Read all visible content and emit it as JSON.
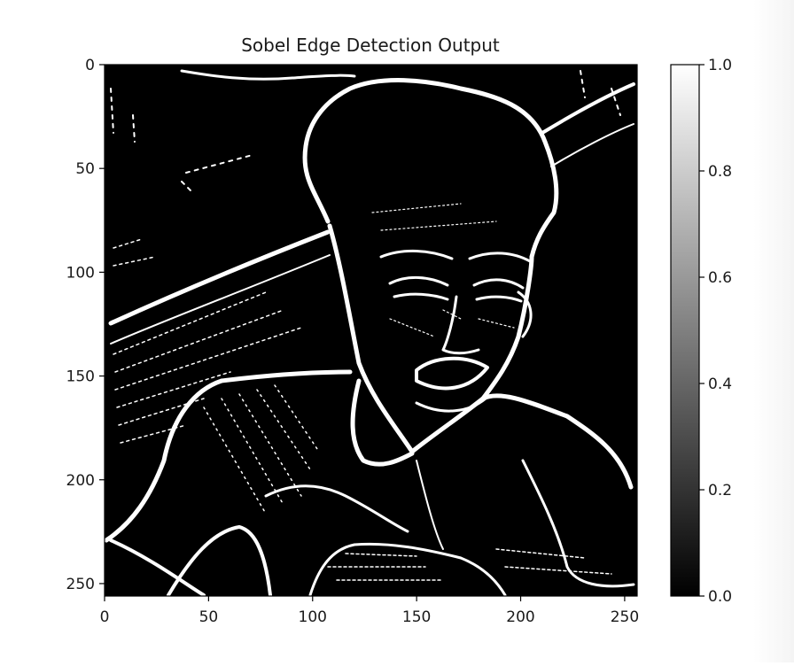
{
  "chart_data": {
    "type": "heatmap",
    "title": "Sobel Edge Detection Output",
    "xlabel": "",
    "ylabel": "",
    "image_size": [
      256,
      256
    ],
    "xlim": [
      0,
      256
    ],
    "ylim": [
      256,
      0
    ],
    "x_ticks": [
      0,
      50,
      100,
      150,
      200,
      250
    ],
    "y_ticks": [
      0,
      50,
      100,
      150,
      200,
      250
    ],
    "x_tick_labels": [
      "0",
      "50",
      "100",
      "150",
      "200",
      "250"
    ],
    "y_tick_labels": [
      "0",
      "50",
      "100",
      "150",
      "200",
      "250"
    ],
    "colormap": "gray",
    "colorbar": {
      "range": [
        0.0,
        1.0
      ],
      "ticks": [
        0.0,
        0.2,
        0.4,
        0.6,
        0.8,
        1.0
      ],
      "tick_labels": [
        "0.0",
        "0.2",
        "0.4",
        "0.6",
        "0.8",
        "1.0"
      ]
    },
    "grid": false,
    "background_color": "#000000",
    "edge_color": "#ffffff"
  }
}
